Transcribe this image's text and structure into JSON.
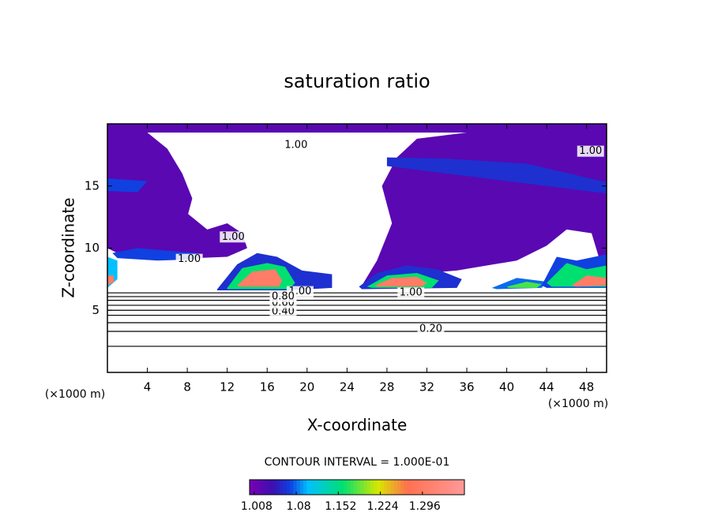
{
  "chart_data": {
    "type": "contour",
    "title": "saturation ratio",
    "xlabel": "X-coordinate",
    "ylabel": "Z-coordinate",
    "x_unit_left": "(×1000 m)",
    "x_unit_right": "(×1000 m)",
    "xlim": [
      0,
      50
    ],
    "ylim": [
      0,
      20
    ],
    "xticks": [
      4,
      8,
      12,
      16,
      20,
      24,
      28,
      32,
      36,
      40,
      44,
      48
    ],
    "yticks": [
      5,
      10,
      15
    ],
    "contour_interval_text": "CONTOUR INTERVAL = 1.000E-01",
    "colormap": [
      [
        1.0,
        "#7a00b4"
      ],
      [
        1.04,
        "#3a10b0"
      ],
      [
        1.07,
        "#1040e0"
      ],
      [
        1.1,
        "#00c0ff"
      ],
      [
        1.16,
        "#00e070"
      ],
      [
        1.22,
        "#d8e800"
      ],
      [
        1.27,
        "#ff7050"
      ],
      [
        1.368,
        "#ff9a9a"
      ]
    ],
    "colorbar": {
      "lim": [
        1.0,
        1.368
      ],
      "ticks": [
        1.008,
        1.08,
        1.152,
        1.224,
        1.296
      ]
    },
    "contour_lines": [
      {
        "level": 0.1,
        "z": 2.1
      },
      {
        "level": 0.2,
        "z": 3.3
      },
      {
        "level": 0.3,
        "z": 4.0
      },
      {
        "level": 0.4,
        "z": 4.6
      },
      {
        "level": 0.5,
        "z": 5.0
      },
      {
        "level": 0.6,
        "z": 5.4
      },
      {
        "level": 0.7,
        "z": 5.8
      },
      {
        "level": 0.8,
        "z": 6.1
      },
      {
        "level": 0.9,
        "z": 6.4
      }
    ],
    "contour_labels": [
      {
        "value": 1,
        "label": "1.00",
        "x": 18.9,
        "z": 18.3
      },
      {
        "value": 1,
        "label": "1.00",
        "x": 48.4,
        "z": 17.8
      },
      {
        "value": 1,
        "label": "1.00",
        "x": 12.6,
        "z": 10.9
      },
      {
        "value": 1,
        "label": "1.00",
        "x": 8.2,
        "z": 9.1
      },
      {
        "value": 1,
        "label": "1.00",
        "x": 30.4,
        "z": 6.4
      },
      {
        "value": 1,
        "label": "1.00",
        "x": 19.3,
        "z": 6.5
      },
      {
        "value": 0.2,
        "label": "0.20",
        "x": 32.4,
        "z": 3.5
      },
      {
        "value": 0.4,
        "label": "0.40",
        "x": 17.6,
        "z": 4.9
      },
      {
        "value": 0.6,
        "label": "0.60",
        "x": 17.6,
        "z": 5.6
      },
      {
        "value": 0.8,
        "label": "0.80",
        "x": 17.6,
        "z": 6.1
      }
    ],
    "filled_regions": [
      {
        "value": 1.02,
        "x": [
          0,
          50,
          50,
          0
        ],
        "z": [
          20,
          20,
          19.3,
          19.3
        ]
      },
      {
        "value": 1.02,
        "x": [
          0,
          4,
          6,
          7.5,
          8.5,
          8,
          6,
          4,
          2,
          0
        ],
        "z": [
          19.3,
          19.3,
          18,
          16,
          14,
          12.5,
          12.5,
          11.5,
          10.5,
          10.2
        ]
      },
      {
        "value": 1.02,
        "x": [
          0,
          2,
          5,
          8,
          10,
          12,
          13.5,
          14,
          12,
          9,
          5,
          1,
          0
        ],
        "z": [
          11,
          12.2,
          12.5,
          12.8,
          11.5,
          12,
          11.2,
          10,
          9.3,
          9.2,
          9.4,
          9.6,
          10
        ]
      },
      {
        "value": 1.02,
        "x": [
          25.5,
          27,
          28.5,
          27.5,
          29,
          31,
          36,
          50,
          50,
          48.5,
          46,
          44,
          41,
          38,
          35,
          32,
          29,
          26.5
        ],
        "z": [
          7,
          9,
          12,
          15,
          17.3,
          18.8,
          19.3,
          19.3,
          7.2,
          11.2,
          11.5,
          10.2,
          9,
          8.6,
          8.2,
          8.0,
          7.5,
          6.8
        ]
      },
      {
        "value": 1.06,
        "x": [
          28,
          50,
          50,
          42,
          34,
          28
        ],
        "z": [
          16.6,
          14.4,
          15.3,
          16.8,
          17.2,
          17.3
        ]
      },
      {
        "value": 1.07,
        "x": [
          0,
          3,
          4,
          0
        ],
        "z": [
          14.6,
          14.5,
          15.4,
          15.6
        ]
      },
      {
        "value": 1.07,
        "x": [
          0.5,
          3,
          6,
          9,
          9,
          5,
          1
        ],
        "z": [
          9.6,
          10,
          9.8,
          9.6,
          9.1,
          9.0,
          9.2
        ]
      },
      {
        "value": 1.06,
        "x": [
          11,
          13,
          15,
          17,
          19.5,
          22.5,
          22.5,
          18,
          11
        ],
        "z": [
          6.7,
          8.7,
          9.6,
          9.3,
          8.2,
          7.9,
          6.8,
          6.6,
          6.6
        ]
      },
      {
        "value": 1.16,
        "x": [
          12,
          13.5,
          16,
          17.8,
          18.8,
          18.2,
          12
        ],
        "z": [
          6.8,
          8.4,
          8.8,
          8.5,
          7.2,
          6.7,
          6.7
        ]
      },
      {
        "value": 1.3,
        "x": [
          13,
          14.5,
          16.8,
          17.5,
          17.2,
          13.2
        ],
        "z": [
          7,
          8.1,
          8.3,
          7.4,
          6.9,
          6.9
        ]
      },
      {
        "value": 1.06,
        "x": [
          25.2,
          27,
          30,
          33,
          35.5,
          35,
          25.5
        ],
        "z": [
          6.9,
          8.0,
          8.6,
          8.3,
          7.5,
          6.8,
          6.7
        ]
      },
      {
        "value": 1.16,
        "x": [
          26,
          28,
          31,
          33.2,
          32.5,
          26.5
        ],
        "z": [
          6.9,
          7.8,
          8.0,
          7.4,
          6.8,
          6.8
        ]
      },
      {
        "value": 1.3,
        "x": [
          26.8,
          28.5,
          31,
          32,
          31.5,
          27
        ],
        "z": [
          7.0,
          7.6,
          7.7,
          7.2,
          6.9,
          6.9
        ]
      },
      {
        "value": 1.08,
        "x": [
          38.5,
          41,
          44,
          43.5,
          39
        ],
        "z": [
          6.8,
          7.6,
          7.3,
          6.8,
          6.7
        ]
      },
      {
        "value": 1.18,
        "x": [
          40,
          42,
          43.5,
          43,
          40.2
        ],
        "z": [
          6.9,
          7.3,
          7.1,
          6.8,
          6.8
        ]
      },
      {
        "value": 1.07,
        "x": [
          43.5,
          45,
          47,
          50,
          50,
          44
        ],
        "z": [
          7.0,
          9.3,
          9.0,
          9.5,
          6.8,
          6.8
        ]
      },
      {
        "value": 1.16,
        "x": [
          44,
          46,
          48,
          50,
          50,
          44.5
        ],
        "z": [
          7.2,
          8.8,
          8.3,
          8.6,
          6.9,
          6.9
        ]
      },
      {
        "value": 1.3,
        "x": [
          46.5,
          48,
          50,
          50,
          47
        ],
        "z": [
          7.0,
          7.8,
          7.6,
          7.0,
          6.9
        ]
      },
      {
        "value": 1.1,
        "x": [
          0,
          1,
          1,
          0
        ],
        "z": [
          6.8,
          7.5,
          9.0,
          9.3
        ]
      },
      {
        "value": 1.3,
        "x": [
          0,
          0.7,
          0.6,
          0
        ],
        "z": [
          7.0,
          7.3,
          7.8,
          7.8
        ]
      }
    ]
  }
}
